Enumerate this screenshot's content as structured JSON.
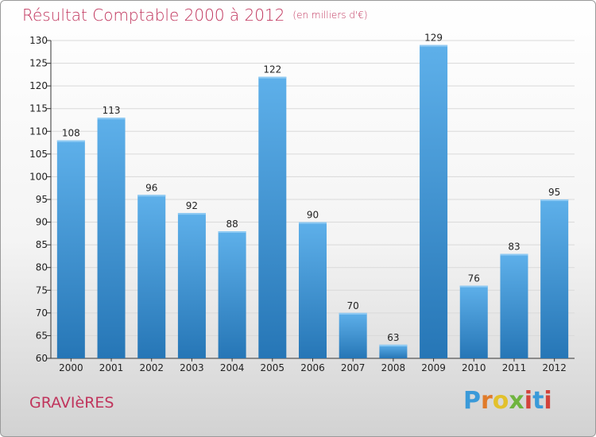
{
  "header": {
    "title": "Résultat Comptable 2000 à 2012",
    "unit": "(en milliers d'€)"
  },
  "commune": "GRAVIèRES",
  "logo": {
    "text": "Proxiti"
  },
  "chart_data": {
    "type": "bar",
    "title": "Résultat Comptable 2000 à 2012",
    "subtitle": "(en milliers d'€)",
    "categories": [
      "2000",
      "2001",
      "2002",
      "2003",
      "2004",
      "2005",
      "2006",
      "2007",
      "2008",
      "2009",
      "2010",
      "2011",
      "2012"
    ],
    "values": [
      108,
      113,
      96,
      92,
      88,
      122,
      90,
      70,
      63,
      129,
      76,
      83,
      95
    ],
    "ylim": [
      60,
      130
    ],
    "yticks": [
      60,
      65,
      70,
      75,
      80,
      85,
      90,
      95,
      100,
      105,
      110,
      115,
      120,
      125,
      130
    ],
    "grid": true,
    "bar_color_top": "#5eb0ea",
    "bar_color_bottom": "#2676b6",
    "title_color": "#c0345c"
  }
}
